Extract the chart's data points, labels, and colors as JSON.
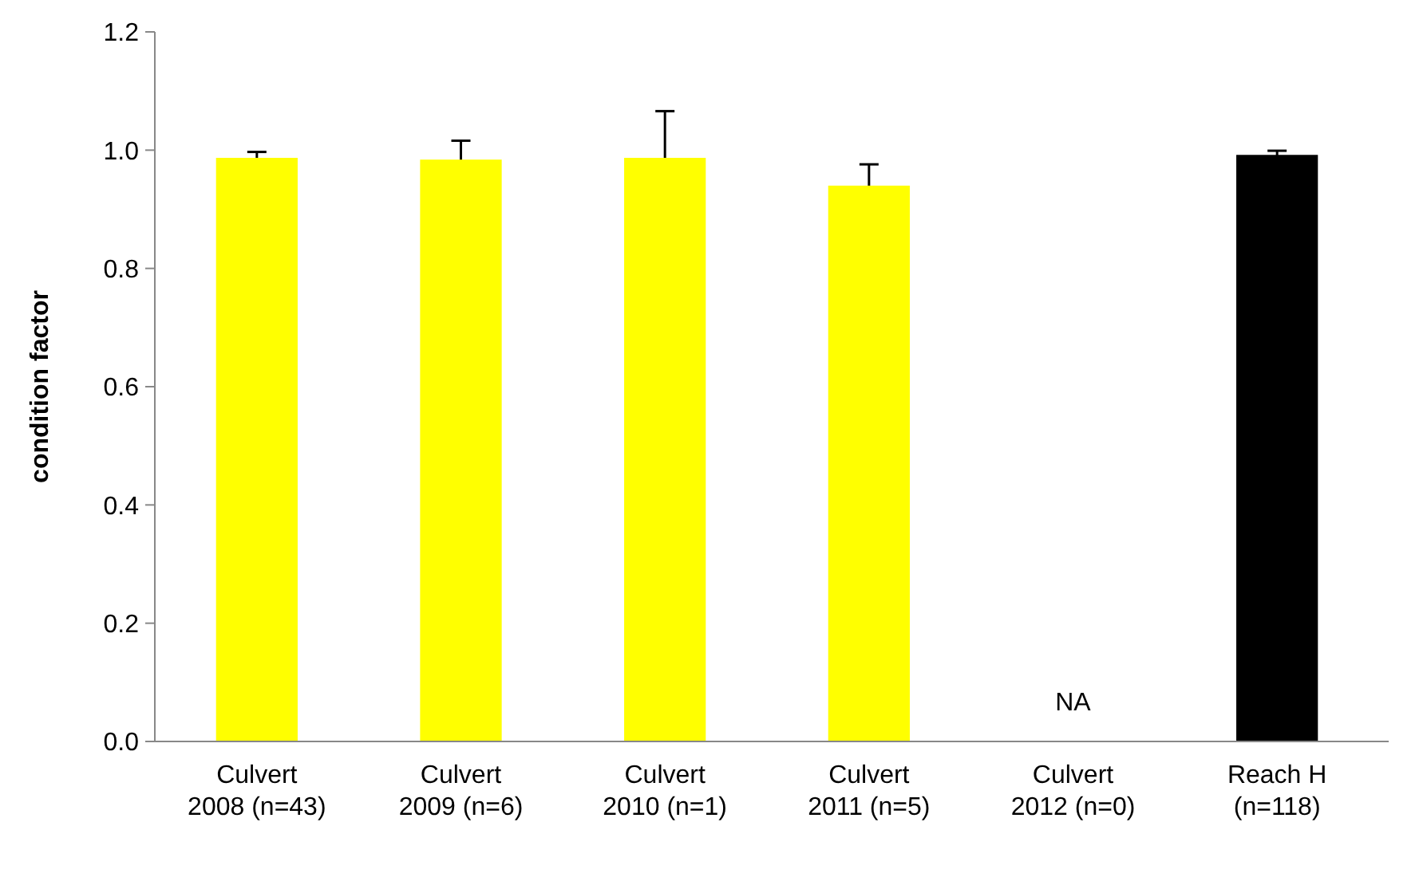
{
  "chart_data": {
    "type": "bar",
    "ylabel": "condition factor",
    "categories": [
      "Culvert\n2008 (n=43)",
      "Culvert\n2009 (n=6)",
      "Culvert\n2010 (n=1)",
      "Culvert\n2011 (n=5)",
      "Culvert\n2012 (n=0)",
      "Reach H\n(n=118)"
    ],
    "values": [
      0.987,
      0.984,
      0.987,
      0.94,
      null,
      0.992
    ],
    "errors": [
      0.01,
      0.032,
      0.079,
      0.036,
      null,
      0.007
    ],
    "colors": [
      "#ffff00",
      "#ffff00",
      "#ffff00",
      "#ffff00",
      null,
      "#000000"
    ],
    "ylim": [
      0,
      1.2
    ],
    "yticks": [
      {
        "value": 0,
        "label": "0.0"
      },
      {
        "value": 0.2,
        "label": "0.2"
      },
      {
        "value": 0.4,
        "label": "0.4"
      },
      {
        "value": 0.6,
        "label": "0.6"
      },
      {
        "value": 0.8,
        "label": "0.8"
      },
      {
        "value": 1,
        "label": "1.0"
      },
      {
        "value": 1.2,
        "label": "1.2"
      }
    ],
    "annotations": [
      "NA"
    ],
    "grid": false
  }
}
